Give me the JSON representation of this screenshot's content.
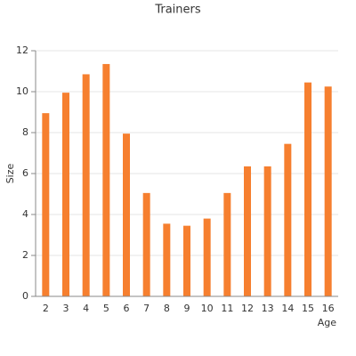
{
  "chart_data": {
    "type": "bar",
    "title": "Trainers",
    "x_label": "Age",
    "y_label": "Size",
    "categories": [
      "2",
      "3",
      "4",
      "5",
      "6",
      "7",
      "8",
      "9",
      "10",
      "11",
      "12",
      "13",
      "14",
      "15",
      "16"
    ],
    "values": [
      8.95,
      9.95,
      10.85,
      11.35,
      7.95,
      5.05,
      3.55,
      3.45,
      3.8,
      5.05,
      6.35,
      6.35,
      7.45,
      10.45,
      10.25
    ],
    "color": "#f67f2f",
    "ylim": [
      0,
      12
    ],
    "yticks": [
      0,
      2,
      4,
      6,
      8,
      10,
      12
    ],
    "grid": true
  }
}
